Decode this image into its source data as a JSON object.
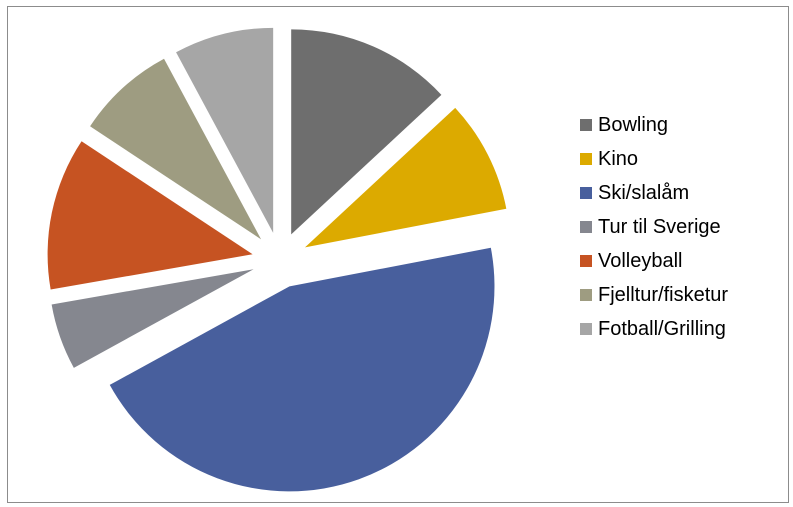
{
  "chart_data": {
    "type": "pie",
    "exploded": true,
    "legend_position": "right",
    "slices": [
      {
        "label": "Bowling",
        "value": 12.5,
        "color": "#6e6e6e"
      },
      {
        "label": "Kino",
        "value": 8.5,
        "color": "#dcaa00"
      },
      {
        "label": "Ski/slalåm",
        "value": 43,
        "color": "#485f9d"
      },
      {
        "label": "Tur til Sverige",
        "value": 5,
        "color": "#85878f"
      },
      {
        "label": "Volleyball",
        "value": 11.5,
        "color": "#c65322"
      },
      {
        "label": "Fjelltur/fisketur",
        "value": 7.5,
        "color": "#9e9c81"
      },
      {
        "label": "Fotball/Grilling",
        "value": 7.5,
        "color": "#a6a6a6"
      }
    ]
  }
}
